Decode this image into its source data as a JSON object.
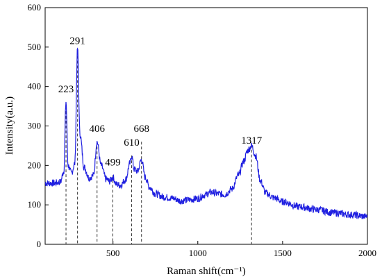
{
  "chart_data": {
    "type": "line",
    "xlabel": "Raman shift(cm⁻¹)",
    "ylabel": "Intensity(a.u.)",
    "xlim": [
      100,
      2000
    ],
    "ylim": [
      0,
      600
    ],
    "x_ticks": [
      500,
      1000,
      1500,
      2000
    ],
    "y_ticks": [
      0,
      100,
      200,
      300,
      400,
      500,
      600
    ],
    "grid": false,
    "line_color": "#1f1fe0",
    "series": [
      {
        "x": [
          100,
          150,
          190,
          210,
          223,
          235,
          255,
          275,
          291,
          305,
          330,
          360,
          385,
          406,
          430,
          460,
          480,
          499,
          520,
          545,
          575,
          600,
          610,
          625,
          645,
          668,
          690,
          715,
          750,
          800,
          850,
          900,
          950,
          1000,
          1040,
          1080,
          1120,
          1160,
          1200,
          1240,
          1270,
          1295,
          1317,
          1340,
          1370,
          1400,
          1450,
          1500,
          1600,
          1700,
          1800,
          1900,
          2000
        ],
        "y": [
          155,
          155,
          158,
          185,
          362,
          200,
          180,
          205,
          497,
          280,
          195,
          168,
          175,
          260,
          200,
          165,
          160,
          170,
          152,
          150,
          165,
          205,
          225,
          190,
          185,
          215,
          170,
          145,
          128,
          120,
          117,
          110,
          113,
          116,
          125,
          132,
          128,
          126,
          140,
          175,
          210,
          238,
          250,
          225,
          160,
          130,
          118,
          108,
          95,
          88,
          80,
          75,
          70
        ]
      }
    ],
    "annotations": [
      {
        "x": 223,
        "y_label": 385,
        "line_top": 350,
        "text": "223"
      },
      {
        "x": 291,
        "y_label": 508,
        "line_top": 490,
        "text": "291"
      },
      {
        "x": 406,
        "y_label": 285,
        "line_top": 260,
        "text": "406"
      },
      {
        "x": 499,
        "y_label": 200,
        "line_top": 175,
        "text": "499"
      },
      {
        "x": 610,
        "y_label": 250,
        "line_top": 225,
        "text": "610"
      },
      {
        "x": 668,
        "y_label": 285,
        "line_top": 260,
        "text": "668"
      },
      {
        "x": 1317,
        "y_label": 255,
        "line_top": 252,
        "text": "1317"
      }
    ]
  }
}
